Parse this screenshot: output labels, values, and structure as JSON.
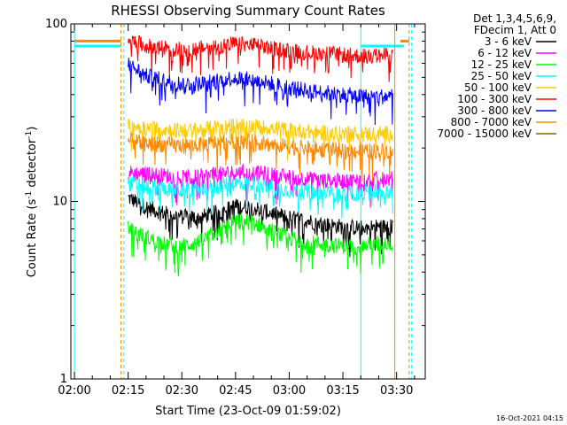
{
  "chart_data": {
    "type": "line",
    "title": "RHESSI Observing Summary Count Rates",
    "xlabel": "Start Time (23-Oct-09 01:59:02)",
    "ylabel_main": "Count Rate (s",
    "ylabel_sup": "-1",
    "ylabel_tail": " detector",
    "ylabel_sup2": "-1",
    "ylabel_end": ")",
    "y_scale": "log",
    "ylim": [
      1,
      100
    ],
    "y_ticks": [
      {
        "value": 1,
        "label": "1"
      },
      {
        "value": 10,
        "label": "10"
      },
      {
        "value": 100,
        "label": "100"
      }
    ],
    "x_unit": "minutes after 02:00",
    "xlim": [
      -1,
      98
    ],
    "x_ticks": [
      {
        "value": 0,
        "label": "02:00"
      },
      {
        "value": 15,
        "label": "02:15"
      },
      {
        "value": 30,
        "label": "02:30"
      },
      {
        "value": 45,
        "label": "02:45"
      },
      {
        "value": 60,
        "label": "03:00"
      },
      {
        "value": 75,
        "label": "03:15"
      },
      {
        "value": 90,
        "label": "03:30"
      }
    ],
    "legend_header": [
      "Det 1,3,4,5,6,9,",
      "FDecim 1, Att 0"
    ],
    "legend_position": "right",
    "series": [
      {
        "name": "3 - 6 keV",
        "color": "#000000",
        "x": [
          15,
          20,
          25,
          30,
          35,
          40,
          45,
          50,
          55,
          60,
          65,
          70,
          75,
          80,
          85,
          89
        ],
        "values": [
          10.5,
          9.3,
          8.6,
          8.2,
          8.1,
          8.7,
          9.4,
          9.2,
          8.6,
          8.1,
          7.8,
          7.4,
          7.2,
          7.1,
          7.2,
          7.2
        ]
      },
      {
        "name": "6 - 12 keV",
        "color": "#ff00ff",
        "x": [
          15,
          20,
          25,
          30,
          35,
          40,
          45,
          50,
          55,
          60,
          65,
          70,
          75,
          80,
          85,
          89
        ],
        "values": [
          14.5,
          14.3,
          14.0,
          13.6,
          13.8,
          14.2,
          14.6,
          14.5,
          14.1,
          13.7,
          13.4,
          13.1,
          13.0,
          13.2,
          13.4,
          13.4
        ]
      },
      {
        "name": "12 - 25 keV",
        "color": "#00ff00",
        "x": [
          15,
          20,
          25,
          30,
          35,
          40,
          45,
          50,
          55,
          60,
          65,
          70,
          75,
          80,
          85,
          89
        ],
        "values": [
          7.0,
          6.3,
          5.8,
          5.6,
          5.9,
          6.8,
          7.8,
          7.6,
          6.8,
          6.2,
          5.9,
          5.7,
          5.6,
          5.6,
          5.8,
          5.8
        ]
      },
      {
        "name": "25 - 50 keV",
        "color": "#00ffff",
        "x": [
          15,
          20,
          25,
          30,
          35,
          40,
          45,
          50,
          55,
          60,
          65,
          70,
          75,
          80,
          85,
          89
        ],
        "values": [
          12.6,
          12.1,
          11.8,
          11.6,
          11.8,
          12.2,
          12.7,
          12.5,
          12.0,
          11.6,
          11.3,
          11.1,
          11.0,
          11.2,
          11.4,
          11.4
        ]
      },
      {
        "name": "50 - 100 keV",
        "color": "#ffcc00",
        "x": [
          15,
          20,
          25,
          30,
          35,
          40,
          45,
          50,
          55,
          60,
          65,
          70,
          75,
          80,
          85,
          89
        ],
        "values": [
          26.5,
          26.0,
          25.4,
          25.0,
          25.3,
          26.0,
          26.8,
          26.6,
          25.9,
          25.2,
          24.8,
          24.3,
          24.0,
          24.0,
          24.1,
          24.1
        ]
      },
      {
        "name": "100 - 300 keV",
        "color": "#ff0000",
        "x": [
          15,
          20,
          25,
          30,
          35,
          40,
          45,
          50,
          55,
          60,
          65,
          70,
          75,
          80,
          85,
          89
        ],
        "values": [
          81,
          75,
          73,
          72,
          73,
          75,
          77,
          76,
          73,
          71,
          69,
          68,
          67,
          66,
          66,
          67
        ]
      },
      {
        "name": "300 - 800 keV",
        "color": "#0000ff",
        "x": [
          15,
          20,
          25,
          30,
          35,
          40,
          45,
          50,
          55,
          60,
          65,
          70,
          75,
          80,
          85,
          89
        ],
        "values": [
          59,
          51,
          48,
          46,
          46,
          48,
          50,
          48,
          46,
          44,
          42,
          41,
          40,
          39,
          39,
          39
        ]
      },
      {
        "name": "800 - 7000 keV",
        "color": "#ff8800",
        "x": [
          15,
          20,
          25,
          30,
          35,
          40,
          45,
          50,
          55,
          60,
          65,
          70,
          75,
          80,
          85,
          89
        ],
        "values": [
          22.0,
          21.3,
          20.9,
          20.6,
          20.8,
          21.4,
          21.9,
          21.6,
          20.9,
          20.4,
          20.0,
          19.6,
          19.3,
          19.2,
          19.3,
          19.3
        ]
      },
      {
        "name": "7000 - 15000 keV",
        "color": "#886600",
        "x": [],
        "values": []
      }
    ],
    "attenuator_segments": [
      {
        "color": "#ff8800",
        "x": [
          0,
          13
        ],
        "value": 80
      },
      {
        "color": "#00ffff",
        "x": [
          0,
          13
        ],
        "value": 75
      },
      {
        "color": "#00ffff",
        "x": [
          80,
          92
        ],
        "value": 75
      },
      {
        "color": "#ff8800",
        "x": [
          91,
          93.5
        ],
        "value": 80
      }
    ],
    "vertical_markers": [
      {
        "x": 0,
        "color": "#00ffff",
        "style": "solid"
      },
      {
        "x": 13,
        "color": "#ff8800",
        "style": "dashed"
      },
      {
        "x": 13.8,
        "color": "#00ffff",
        "style": "dashed"
      },
      {
        "x": 80,
        "color": "#00ffff",
        "style": "solid"
      },
      {
        "x": 89.5,
        "color": "#ff8800",
        "style": "solid"
      },
      {
        "x": 93.5,
        "color": "#ff8800",
        "style": "dashed"
      },
      {
        "x": 94.2,
        "color": "#00ffff",
        "style": "dashed"
      }
    ],
    "grid": false
  },
  "footer": {
    "timestamp": "16-Oct-2021 04:15"
  }
}
